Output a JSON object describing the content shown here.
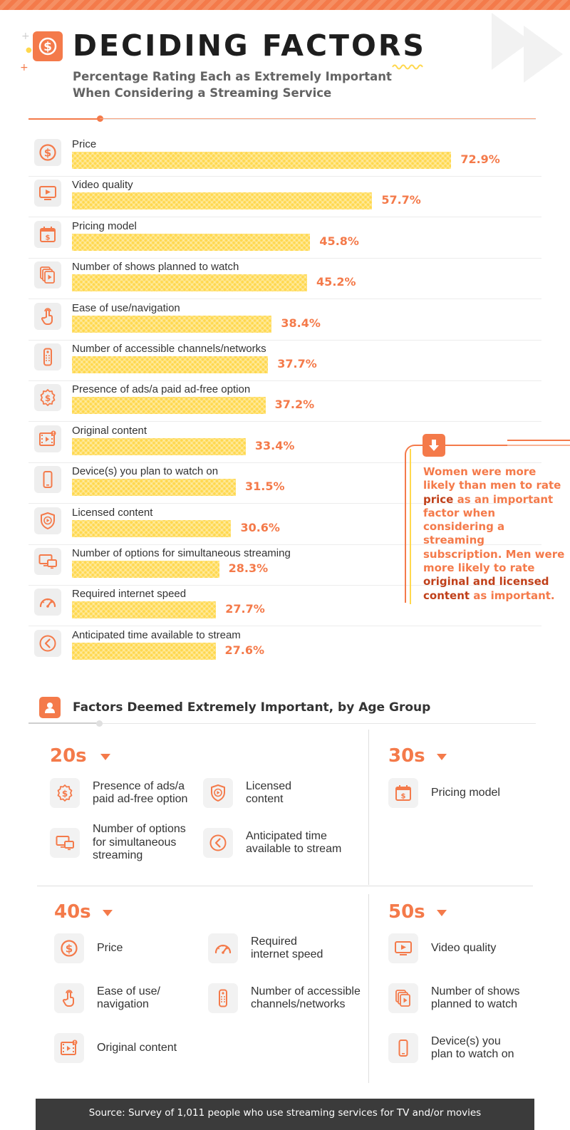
{
  "header": {
    "title": "DECIDING FACTORS",
    "subtitle": "Percentage Rating Each as Extremely Important When Considering a Streaming Service"
  },
  "colors": {
    "accent": "#f47a4a",
    "bar": "#ffd84d",
    "dark": "#3b3b3b"
  },
  "chart_data": {
    "type": "bar",
    "orientation": "horizontal",
    "title": "Percentage Rating Each as Extremely Important When Considering a Streaming Service",
    "unit": "%",
    "xlim": [
      0,
      90
    ],
    "categories": [
      "Price",
      "Video quality",
      "Pricing model",
      "Number of shows planned to watch",
      "Ease of use/navigation",
      "Number of accessible channels/networks",
      "Presence of ads/a paid ad-free option",
      "Original content",
      "Device(s) you plan to watch on",
      "Licensed content",
      "Number of options for simultaneous streaming",
      "Required internet speed",
      "Anticipated time available to stream"
    ],
    "values": [
      72.9,
      57.7,
      45.8,
      45.2,
      38.4,
      37.7,
      37.2,
      33.4,
      31.5,
      30.6,
      28.3,
      27.7,
      27.6
    ],
    "value_labels": [
      "72.9%",
      "57.7%",
      "45.8%",
      "45.2%",
      "38.4%",
      "37.7%",
      "37.2%",
      "33.4%",
      "31.5%",
      "30.6%",
      "28.3%",
      "27.7%",
      "27.6%"
    ],
    "icons": [
      "dollar-icon",
      "video-icon",
      "calendar-dollar-icon",
      "stacked-videos-icon",
      "pointer-hand-icon",
      "remote-icon",
      "dollar-badge-icon",
      "film-icon",
      "smartphone-icon",
      "shield-play-icon",
      "monitors-icon",
      "speedometer-icon",
      "clock-arrow-icon"
    ]
  },
  "callout": {
    "segments": [
      {
        "text": "Women were more likely than men to rate ",
        "strong": false
      },
      {
        "text": "price",
        "strong": true
      },
      {
        "text": " as an important factor when considering a streaming subscription. Men were more likely to rate ",
        "strong": false
      },
      {
        "text": "original and licensed content",
        "strong": true
      },
      {
        "text": " as important.",
        "strong": false
      }
    ]
  },
  "age_section": {
    "title": "Factors Deemed Extremely Important, by Age Group",
    "groups": [
      {
        "label": "20s",
        "items": [
          {
            "label": "Presence of ads/a\npaid ad-free option",
            "icon": "dollar-badge-icon"
          },
          {
            "label": "Licensed\ncontent",
            "icon": "shield-play-icon"
          },
          {
            "label": "Number of options\nfor simultaneous\nstreaming",
            "icon": "monitors-icon"
          },
          {
            "label": "Anticipated time\navailable to stream",
            "icon": "clock-arrow-icon"
          }
        ]
      },
      {
        "label": "30s",
        "items": [
          {
            "label": "Pricing model",
            "icon": "calendar-dollar-icon"
          }
        ]
      },
      {
        "label": "40s",
        "items": [
          {
            "label": "Price",
            "icon": "dollar-icon"
          },
          {
            "label": "Required\ninternet speed",
            "icon": "speedometer-icon"
          },
          {
            "label": "Ease of use/\nnavigation",
            "icon": "pointer-hand-icon"
          },
          {
            "label": "Number of accessible\nchannels/networks",
            "icon": "remote-icon"
          },
          {
            "label": "Original content",
            "icon": "film-icon"
          }
        ]
      },
      {
        "label": "50s",
        "items": [
          {
            "label": "Video quality",
            "icon": "video-icon"
          },
          {
            "label": "Number of shows\nplanned to watch",
            "icon": "stacked-videos-icon"
          },
          {
            "label": "Device(s) you\nplan to watch on",
            "icon": "smartphone-icon"
          }
        ]
      }
    ]
  },
  "footer": {
    "source": "Source: Survey of 1,011 people who use streaming services for TV and/or movies"
  }
}
